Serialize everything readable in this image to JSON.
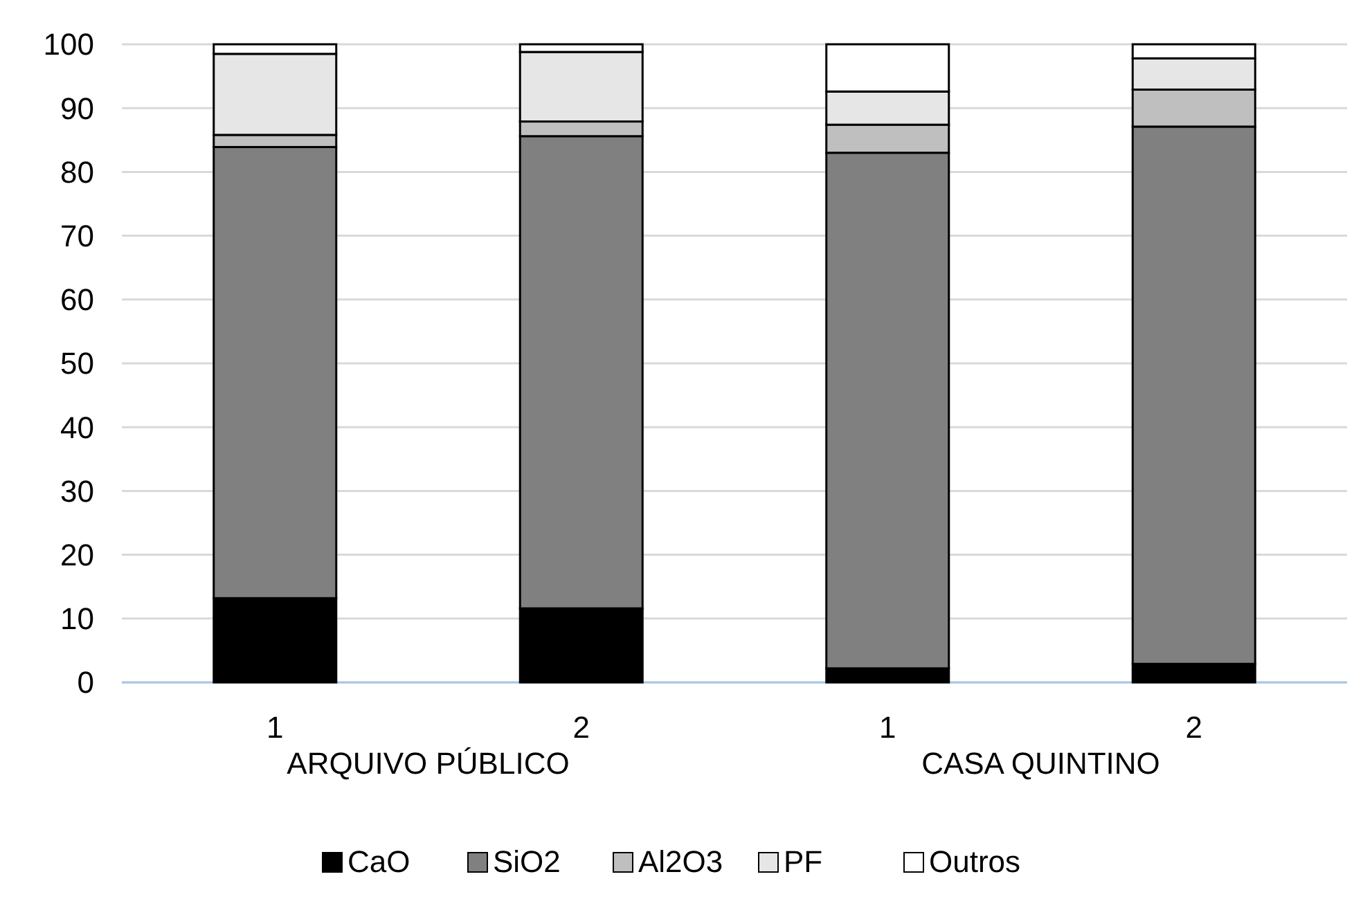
{
  "chart_data": {
    "type": "bar",
    "stacked": true,
    "categories": [
      "1",
      "2",
      "1",
      "2"
    ],
    "annotations": [
      "ARQUIVO PÚBLICO",
      "CASA QUINTINO"
    ],
    "series": [
      {
        "name": "CaO",
        "color": "#000000",
        "values": [
          13.2,
          11.6,
          2.2,
          2.9
        ]
      },
      {
        "name": "SiO2",
        "color": "#808080",
        "values": [
          70.7,
          74.0,
          80.8,
          84.2
        ]
      },
      {
        "name": "Al2O3",
        "color": "#bfbfbf",
        "values": [
          1.9,
          2.3,
          4.4,
          5.8
        ]
      },
      {
        "name": "PF",
        "color": "#e6e6e6",
        "values": [
          12.7,
          10.9,
          5.2,
          4.9
        ]
      },
      {
        "name": "Outros",
        "color": "#ffffff",
        "values": [
          1.5,
          1.2,
          7.4,
          2.2
        ]
      }
    ],
    "ylim": [
      0,
      100
    ],
    "yticks": [
      0,
      10,
      20,
      30,
      40,
      50,
      60,
      70,
      80,
      90,
      100
    ],
    "grid": "y",
    "legend": "bottom"
  }
}
